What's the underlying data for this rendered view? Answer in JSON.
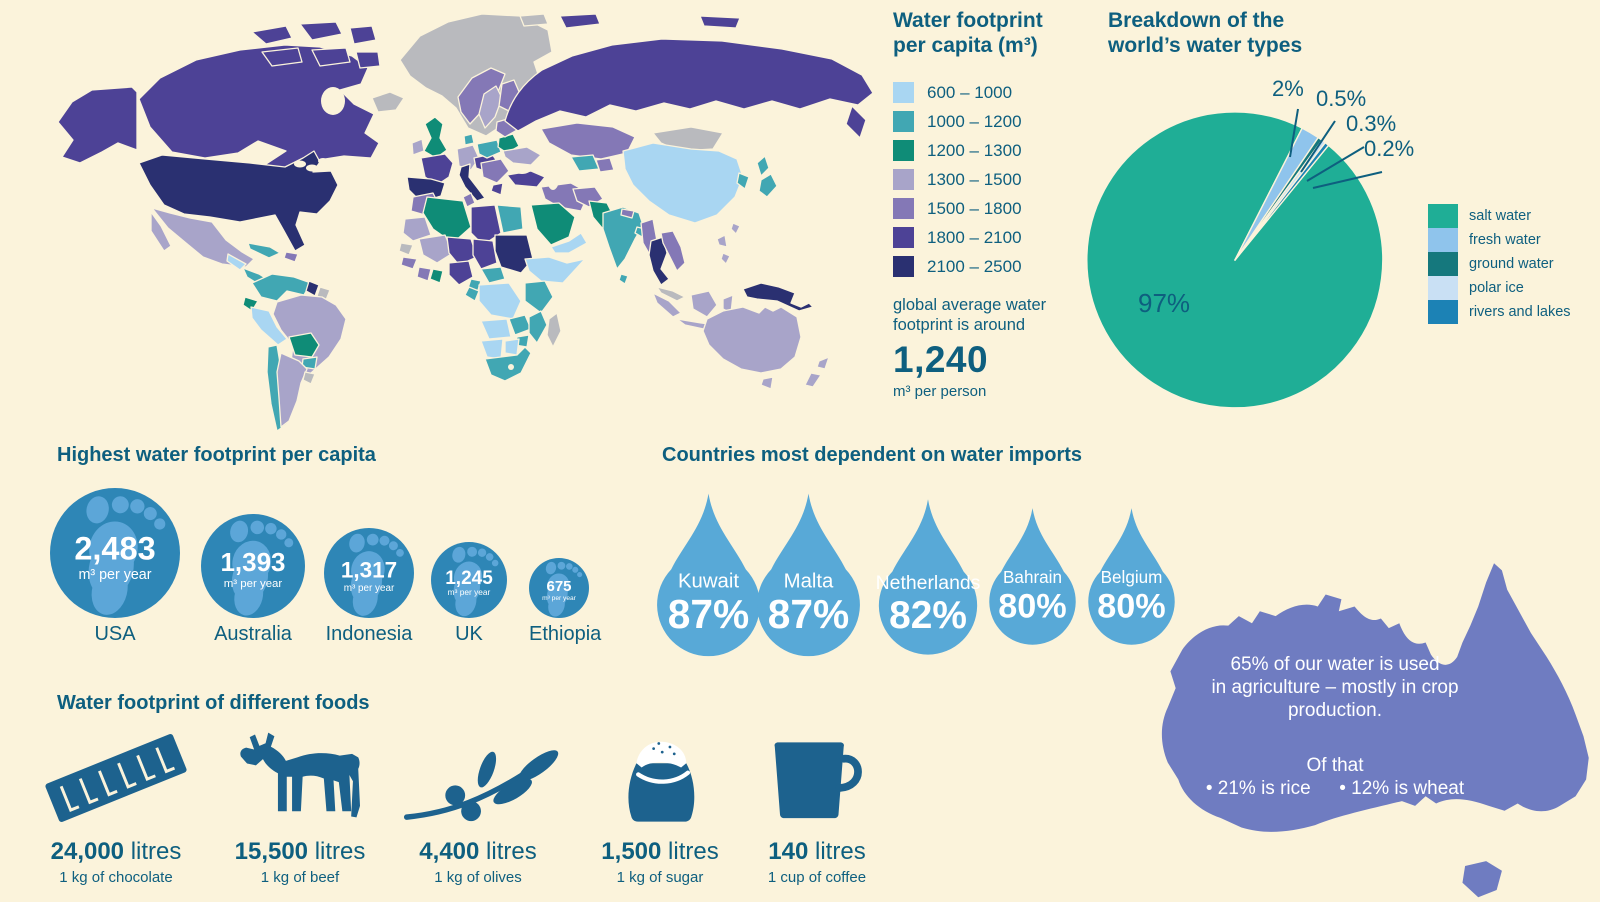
{
  "palette": {
    "background": "#FBF3DB",
    "text_petrol": "#0E5F7F",
    "circle_blue": "#2E86B6",
    "foot_light": "#5CA6D8",
    "drop_blue": "#58A9D7",
    "australia_purple": "#6F7CC1",
    "food_blue": "#1D628E"
  },
  "map": {
    "nodata_color": "#B9BABE",
    "buckets": {
      "b1": "#A9D6F2",
      "b2": "#41A7B3",
      "b3": "#0F8C77",
      "b4": "#A8A4C9",
      "b5": "#8478B6",
      "b6": "#4D4296",
      "b7": "#2A3071",
      "nd": "#B9BABE"
    },
    "regions": {
      "alaska": "b6",
      "canada": "b6",
      "arctic-1": "b6",
      "arctic-2": "b6",
      "arctic-3": "b6",
      "arctic-4": "b6",
      "arctic-5": "b6",
      "arctic-6": "b6",
      "greenland": "nd",
      "iceland": "nd",
      "usa": "b7",
      "mexico": "b4",
      "baja": "b4",
      "guatemala": "b1",
      "panama": "b2",
      "cuba": "b2",
      "hispaniola": "b5",
      "colombia-venezuela": "b2",
      "guyana": "b7",
      "suriname": "nd",
      "ecuador": "b3",
      "peru": "b1",
      "brazil": "b4",
      "bolivia": "b3",
      "paraguay": "b2",
      "chile": "b2",
      "argentina": "b4",
      "uruguay": "nd",
      "uk": "b3",
      "ireland": "b4",
      "norway": "b5",
      "sweden": "b4",
      "finland": "b5",
      "denmark": "b2",
      "germany": "b4",
      "france": "b6",
      "iberia": "b7",
      "italy": "b7",
      "alpine": "b6",
      "poland": "b2",
      "belarus": "b3",
      "baltics": "b5",
      "ukraine": "b4",
      "balkans": "b5",
      "greece": "b6",
      "russia": "b6",
      "kamchatka": "b6",
      "siberian-islands": "b6",
      "svalbard": "nd",
      "kazakhstan": "b5",
      "uzbekistan": "b2",
      "central-asia": "b5",
      "mongolia": "nd",
      "china": "b1",
      "korea": "b2",
      "japan-north": "b2",
      "japan-south": "b2",
      "taiwan": "b4",
      "turkey": "b6",
      "iran-iraq": "b5",
      "afghanistan": "b5",
      "pakistan": "b3",
      "saudi": "b3",
      "yemen-oman": "b1",
      "india": "b2",
      "sri-lanka": "b2",
      "nepal": "b5",
      "bangladesh": "b2",
      "myanmar": "b5",
      "thailand": "b7",
      "vietnam": "b5",
      "malaysia": "nd",
      "sumatra": "b4",
      "java": "b4",
      "borneo": "b4",
      "sulawesi": "b4",
      "philippines-1": "b4",
      "philippines-2": "b4",
      "png": "b7",
      "morocco": "b5",
      "algeria": "b3",
      "tunisia": "b5",
      "libya": "b6",
      "egypt": "b2",
      "w-sahara": "b4",
      "mali": "b4",
      "niger": "b6",
      "chad": "b6",
      "sudan": "b7",
      "senegal": "nd",
      "guinea": "b5",
      "ivory-coast": "b5",
      "ghana": "b3",
      "nigeria": "b6",
      "cameroon": "b2",
      "car": "b2",
      "horn-of-africa": "b1",
      "kenya-tanzania": "b2",
      "drc": "b1",
      "gabon": "b2",
      "angola": "b1",
      "zambia": "b2",
      "mozambique": "b2",
      "zimbabwe": "b2",
      "namibia": "b1",
      "botswana": "b1",
      "south-africa": "b2",
      "madagascar": "nd",
      "australia": "b4",
      "tasmania": "b4",
      "nz-north": "b4",
      "nz-south": "b4"
    }
  },
  "map_legend": {
    "title_lines": "Water footprint\nper capita (m³)",
    "note_lines": "global average water\nfootprint is around"
  },
  "pie_display": {
    "title_lines": "Breakdown of the\nworld’s water types"
  },
  "sections": {
    "footprints_title": "Highest water footprint per capita",
    "imports_title": "Countries most dependent on water imports",
    "foods_title": "Water footprint of different foods"
  },
  "australia_note": {
    "text1": "65% of our water is used\nin agriculture – mostly in crop\nproduction.",
    "text2": "Of that\n• 21% is rice  • 12% is wheat"
  },
  "chart_data": [
    {
      "type": "pie",
      "title": "Breakdown of the world’s water types",
      "labels": [
        "salt water",
        "fresh water",
        "ground water",
        "polar ice",
        "rivers and lakes"
      ],
      "values": [
        97,
        2,
        0.5,
        0.3,
        0.2
      ],
      "unit": "%",
      "colors": [
        "#1FAE96",
        "#8FC4EC",
        "#15787D",
        "#C9E0F4",
        "#1C82B5"
      ],
      "center_label": "97%",
      "callout_labels": [
        "2%",
        "0.5%",
        "0.3%",
        "0.2%"
      ],
      "legend_position": "right"
    },
    {
      "type": "bar",
      "style": "pictogram-circles",
      "title": "Highest water footprint per capita",
      "categories": [
        "USA",
        "Australia",
        "Indonesia",
        "UK",
        "Ethiopia"
      ],
      "values": [
        2483,
        1393,
        1317,
        1245,
        675
      ],
      "value_labels": [
        "2,483",
        "1,393",
        "1,317",
        "1,245",
        "675"
      ],
      "unit": "m³ per year"
    },
    {
      "type": "bar",
      "style": "pictogram-drops",
      "title": "Countries most dependent on water imports",
      "categories": [
        "Kuwait",
        "Malta",
        "Netherlands",
        "Bahrain",
        "Belgium"
      ],
      "values": [
        87,
        87,
        82,
        80,
        80
      ],
      "value_labels": [
        "87%",
        "87%",
        "82%",
        "80%",
        "80%"
      ],
      "unit": "%"
    },
    {
      "type": "bar",
      "style": "pictogram-icons",
      "title": "Water footprint of different foods",
      "categories": [
        "1 kg of chocolate",
        "1 kg of beef",
        "1 kg of olives",
        "1 kg of sugar",
        "1 cup of coffee"
      ],
      "values": [
        24000,
        15500,
        4400,
        1500,
        140
      ],
      "value_labels": [
        "24,000",
        "15,500",
        "4,400",
        "1,500",
        "140"
      ],
      "unit": "litres",
      "icons": [
        "chocolate-bar-icon",
        "cow-icon",
        "olive-branch-icon",
        "sugar-sack-icon",
        "coffee-mug-icon"
      ]
    },
    {
      "type": "heatmap",
      "style": "world-choropleth",
      "title": "Water footprint per capita (m³)",
      "buckets": [
        {
          "range": "600 – 1000",
          "color": "#A9D6F2"
        },
        {
          "range": "1000 – 1200",
          "color": "#41A7B3"
        },
        {
          "range": "1200 – 1300",
          "color": "#0F8C77"
        },
        {
          "range": "1300 – 1500",
          "color": "#A8A4C9"
        },
        {
          "range": "1500 – 1800",
          "color": "#8478B6"
        },
        {
          "range": "1800 – 2100",
          "color": "#4D4296"
        },
        {
          "range": "2100 – 2500",
          "color": "#2A3071"
        }
      ],
      "note": "global average water footprint is around",
      "average_value": "1,240",
      "average_unit": "m³ per person"
    }
  ]
}
